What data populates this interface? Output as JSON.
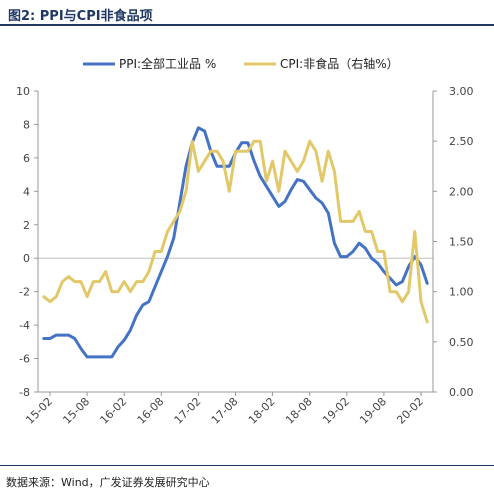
{
  "header": {
    "title": "图2:  PPI与CPI非食品项"
  },
  "footer": {
    "source": "数据来源：Wind，广发证券发展研究中心"
  },
  "chart_data": {
    "type": "line",
    "x_ticks": [
      "15-02",
      "15-08",
      "16-02",
      "16-08",
      "17-02",
      "17-08",
      "18-02",
      "18-08",
      "19-02",
      "19-08",
      "20-02"
    ],
    "ylim_left": [
      -8,
      10
    ],
    "ylim_right": [
      0.0,
      3.0
    ],
    "y_ticks_left": [
      "-8",
      "-6",
      "-4",
      "-2",
      "0",
      "2",
      "4",
      "6",
      "8",
      "10"
    ],
    "y_ticks_right": [
      "0.00",
      "0.50",
      "1.00",
      "1.50",
      "2.00",
      "2.50",
      "3.00"
    ],
    "legend_placement": "top",
    "series": [
      {
        "name": "PPI:全部工业品 %",
        "axis": "left",
        "color": "#4472c4",
        "x": [
          "2015-01",
          "2015-02",
          "2015-03",
          "2015-04",
          "2015-05",
          "2015-06",
          "2015-07",
          "2015-08",
          "2015-09",
          "2015-10",
          "2015-11",
          "2015-12",
          "2016-01",
          "2016-02",
          "2016-03",
          "2016-04",
          "2016-05",
          "2016-06",
          "2016-07",
          "2016-08",
          "2016-09",
          "2016-10",
          "2016-11",
          "2016-12",
          "2017-01",
          "2017-02",
          "2017-03",
          "2017-04",
          "2017-05",
          "2017-06",
          "2017-07",
          "2017-08",
          "2017-09",
          "2017-10",
          "2017-11",
          "2017-12",
          "2018-01",
          "2018-02",
          "2018-03",
          "2018-04",
          "2018-05",
          "2018-06",
          "2018-07",
          "2018-08",
          "2018-09",
          "2018-10",
          "2018-11",
          "2018-12",
          "2019-01",
          "2019-02",
          "2019-03",
          "2019-04",
          "2019-05",
          "2019-06",
          "2019-07",
          "2019-08",
          "2019-09",
          "2019-10",
          "2019-11",
          "2019-12",
          "2020-01",
          "2020-02",
          "2020-03"
        ],
        "values": [
          -4.8,
          -4.8,
          -4.6,
          -4.6,
          -4.6,
          -4.8,
          -5.4,
          -5.9,
          -5.9,
          -5.9,
          -5.9,
          -5.9,
          -5.3,
          -4.9,
          -4.3,
          -3.4,
          -2.8,
          -2.6,
          -1.7,
          -0.8,
          0.1,
          1.2,
          3.3,
          5.5,
          6.9,
          7.8,
          7.6,
          6.4,
          5.5,
          5.5,
          5.5,
          6.3,
          6.9,
          6.9,
          5.8,
          4.9,
          4.3,
          3.7,
          3.1,
          3.4,
          4.1,
          4.7,
          4.6,
          4.1,
          3.6,
          3.3,
          2.7,
          0.9,
          0.1,
          0.1,
          0.4,
          0.9,
          0.6,
          0.0,
          -0.3,
          -0.8,
          -1.2,
          -1.6,
          -1.4,
          -0.5,
          0.1,
          -0.4,
          -1.5
        ]
      },
      {
        "name": "CPI:非食品（右轴%）",
        "axis": "right",
        "color": "#e2c869",
        "x": [
          "2015-01",
          "2015-02",
          "2015-03",
          "2015-04",
          "2015-05",
          "2015-06",
          "2015-07",
          "2015-08",
          "2015-09",
          "2015-10",
          "2015-11",
          "2015-12",
          "2016-01",
          "2016-02",
          "2016-03",
          "2016-04",
          "2016-05",
          "2016-06",
          "2016-07",
          "2016-08",
          "2016-09",
          "2016-10",
          "2016-11",
          "2016-12",
          "2017-01",
          "2017-02",
          "2017-03",
          "2017-04",
          "2017-05",
          "2017-06",
          "2017-07",
          "2017-08",
          "2017-09",
          "2017-10",
          "2017-11",
          "2017-12",
          "2018-01",
          "2018-02",
          "2018-03",
          "2018-04",
          "2018-05",
          "2018-06",
          "2018-07",
          "2018-08",
          "2018-09",
          "2018-10",
          "2018-11",
          "2018-12",
          "2019-01",
          "2019-02",
          "2019-03",
          "2019-04",
          "2019-05",
          "2019-06",
          "2019-07",
          "2019-08",
          "2019-09",
          "2019-10",
          "2019-11",
          "2019-12",
          "2020-01",
          "2020-02",
          "2020-03"
        ],
        "values": [
          0.95,
          0.9,
          0.95,
          1.1,
          1.15,
          1.1,
          1.1,
          0.95,
          1.1,
          1.1,
          1.2,
          1.0,
          1.0,
          1.1,
          1.0,
          1.1,
          1.1,
          1.2,
          1.4,
          1.4,
          1.6,
          1.7,
          1.8,
          2.0,
          2.5,
          2.2,
          2.3,
          2.4,
          2.4,
          2.3,
          2.0,
          2.4,
          2.4,
          2.4,
          2.5,
          2.5,
          2.1,
          2.3,
          2.0,
          2.4,
          2.3,
          2.2,
          2.3,
          2.5,
          2.4,
          2.1,
          2.4,
          2.2,
          1.7,
          1.7,
          1.7,
          1.8,
          1.6,
          1.6,
          1.4,
          1.4,
          1.0,
          1.0,
          0.9,
          1.0,
          1.6,
          0.9,
          0.7
        ]
      }
    ]
  }
}
